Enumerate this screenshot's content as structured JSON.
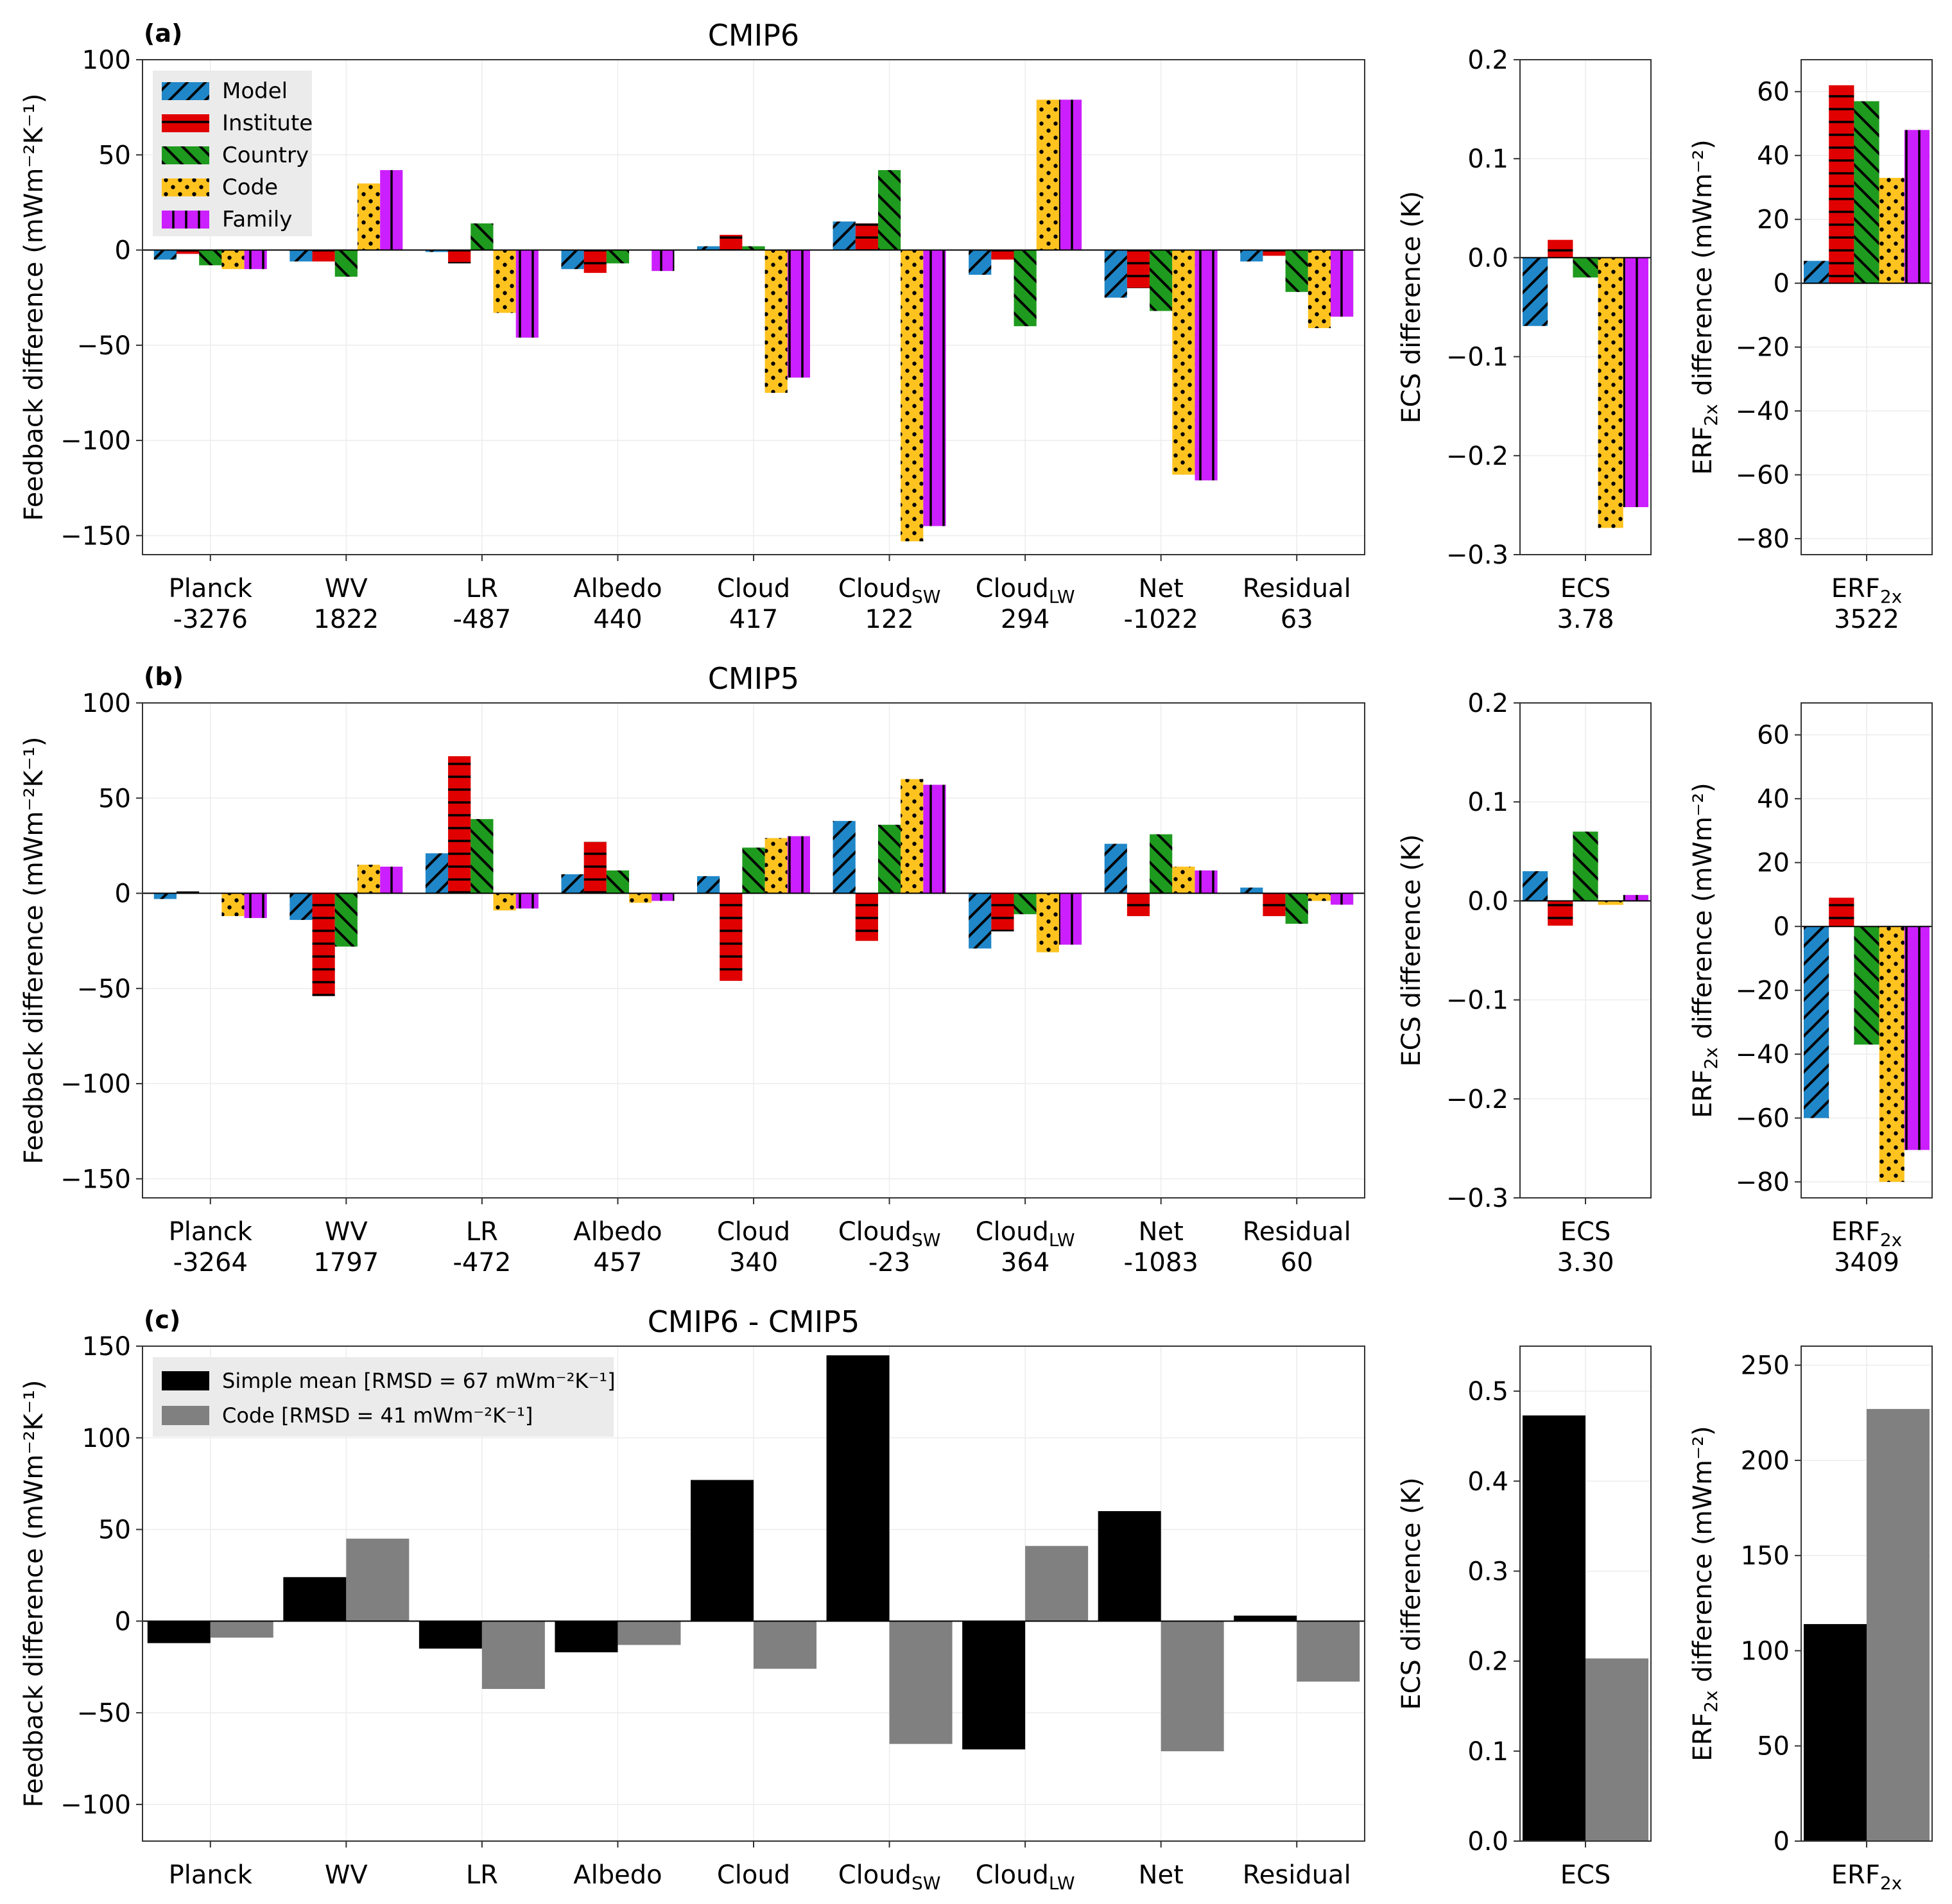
{
  "legend_items": [
    {
      "key": "model",
      "label": "Model",
      "color": "#1f86c8",
      "pattern": "diagonal-lines"
    },
    {
      "key": "institute",
      "label": "Institute",
      "color": "#e00000",
      "pattern": "horizontal-lines"
    },
    {
      "key": "country",
      "label": "Country",
      "color": "#1e9a1e",
      "pattern": "back-diagonal-lines"
    },
    {
      "key": "code",
      "label": "Code",
      "color": "#ffc320",
      "pattern": "dots"
    },
    {
      "key": "family",
      "label": "Family",
      "color": "#cc1fff",
      "pattern": "vertical-lines"
    }
  ],
  "legend_c_items": [
    {
      "key": "simple",
      "label": "Simple mean [RMSD = 67 mWm⁻²K⁻¹]",
      "color": "#000000"
    },
    {
      "key": "codec",
      "label": "Code [RMSD = 41 mWm⁻²K⁻¹]",
      "color": "#808080"
    }
  ],
  "chart_data": [
    {
      "panel": "a",
      "title": "CMIP6",
      "panel_label": "(a)",
      "type": "bar",
      "ylabel": "Feedback difference (mWm⁻²K⁻¹)",
      "ylim": [
        -160,
        100
      ],
      "yticks": [
        100,
        50,
        0,
        -50,
        -100,
        -150
      ],
      "categories": [
        {
          "name": "Planck",
          "sub": "",
          "value_label": "-3276"
        },
        {
          "name": "WV",
          "sub": "",
          "value_label": "1822"
        },
        {
          "name": "LR",
          "sub": "",
          "value_label": "-487"
        },
        {
          "name": "Albedo",
          "sub": "",
          "value_label": "440"
        },
        {
          "name": "Cloud",
          "sub": "",
          "value_label": "417"
        },
        {
          "name": "Cloud",
          "sub": "SW",
          "value_label": "122"
        },
        {
          "name": "Cloud",
          "sub": "LW",
          "value_label": "294"
        },
        {
          "name": "Net",
          "sub": "",
          "value_label": "-1022"
        },
        {
          "name": "Residual",
          "sub": "",
          "value_label": "63"
        }
      ],
      "series": [
        {
          "key": "model",
          "values": [
            -5,
            -6,
            -1,
            -10,
            2,
            15,
            -13,
            -25,
            -6
          ]
        },
        {
          "key": "institute",
          "values": [
            -2,
            -6,
            -7,
            -12,
            8,
            14,
            -5,
            -20,
            -3
          ]
        },
        {
          "key": "country",
          "values": [
            -8,
            -14,
            14,
            -7,
            2,
            42,
            -40,
            -32,
            -22
          ]
        },
        {
          "key": "code",
          "values": [
            -10,
            35,
            -33,
            0,
            -75,
            -153,
            79,
            -118,
            -41
          ]
        },
        {
          "key": "family",
          "values": [
            -10,
            42,
            -46,
            -11,
            -67,
            -145,
            79,
            -121,
            -35
          ]
        }
      ]
    },
    {
      "panel": "a-ecs",
      "type": "bar",
      "ylabel": "ECS difference (K)",
      "ylim": [
        -0.3,
        0.2
      ],
      "yticks": [
        "0.2",
        "0.1",
        "0.0",
        "−0.1",
        "−0.2",
        "−0.3"
      ],
      "ytick_values": [
        0.2,
        0.1,
        0.0,
        -0.1,
        -0.2,
        -0.3
      ],
      "category": {
        "name": "ECS",
        "sub": "",
        "value_label": "3.78"
      },
      "series": [
        {
          "key": "model",
          "value": -0.069
        },
        {
          "key": "institute",
          "value": 0.018
        },
        {
          "key": "country",
          "value": -0.02
        },
        {
          "key": "code",
          "value": -0.273
        },
        {
          "key": "family",
          "value": -0.252
        }
      ]
    },
    {
      "panel": "a-erf",
      "type": "bar",
      "ylabel_main": "ERF",
      "ylabel_sub": "2x",
      "ylabel_rest": " difference (mWm⁻²)",
      "ylim": [
        -85,
        70
      ],
      "yticks": [
        "60",
        "40",
        "20",
        "0",
        "−20",
        "−40",
        "−60",
        "−80"
      ],
      "ytick_values": [
        60,
        40,
        20,
        0,
        -20,
        -40,
        -60,
        -80
      ],
      "category": {
        "name": "ERF",
        "sub": "2x",
        "value_label": "3522"
      },
      "series": [
        {
          "key": "model",
          "value": 7
        },
        {
          "key": "institute",
          "value": 62
        },
        {
          "key": "country",
          "value": 57
        },
        {
          "key": "code",
          "value": 33
        },
        {
          "key": "family",
          "value": 48
        }
      ]
    },
    {
      "panel": "b",
      "title": "CMIP5",
      "panel_label": "(b)",
      "type": "bar",
      "ylabel": "Feedback difference (mWm⁻²K⁻¹)",
      "ylim": [
        -160,
        100
      ],
      "yticks": [
        100,
        50,
        0,
        -50,
        -100,
        -150
      ],
      "categories": [
        {
          "name": "Planck",
          "sub": "",
          "value_label": "-3264"
        },
        {
          "name": "WV",
          "sub": "",
          "value_label": "1797"
        },
        {
          "name": "LR",
          "sub": "",
          "value_label": "-472"
        },
        {
          "name": "Albedo",
          "sub": "",
          "value_label": "457"
        },
        {
          "name": "Cloud",
          "sub": "",
          "value_label": "340"
        },
        {
          "name": "Cloud",
          "sub": "SW",
          "value_label": "-23"
        },
        {
          "name": "Cloud",
          "sub": "LW",
          "value_label": "364"
        },
        {
          "name": "Net",
          "sub": "",
          "value_label": "-1083"
        },
        {
          "name": "Residual",
          "sub": "",
          "value_label": "60"
        }
      ],
      "series": [
        {
          "key": "model",
          "values": [
            -3,
            -14,
            21,
            10,
            9,
            38,
            -29,
            26,
            3
          ]
        },
        {
          "key": "institute",
          "values": [
            1,
            -54,
            72,
            27,
            -46,
            -25,
            -20,
            -12,
            -12
          ]
        },
        {
          "key": "country",
          "values": [
            0,
            -28,
            39,
            12,
            24,
            36,
            -11,
            31,
            -16
          ]
        },
        {
          "key": "code",
          "values": [
            -12,
            15,
            -9,
            -5,
            29,
            60,
            -31,
            14,
            -4
          ]
        },
        {
          "key": "family",
          "values": [
            -13,
            14,
            -8,
            -4,
            30,
            57,
            -27,
            12,
            -6
          ]
        }
      ]
    },
    {
      "panel": "b-ecs",
      "type": "bar",
      "ylabel": "ECS difference (K)",
      "ylim": [
        -0.3,
        0.2
      ],
      "yticks": [
        "0.2",
        "0.1",
        "0.0",
        "−0.1",
        "−0.2",
        "−0.3"
      ],
      "ytick_values": [
        0.2,
        0.1,
        0.0,
        -0.1,
        -0.2,
        -0.3
      ],
      "category": {
        "name": "ECS",
        "sub": "",
        "value_label": "3.30"
      },
      "series": [
        {
          "key": "model",
          "value": 0.03
        },
        {
          "key": "institute",
          "value": -0.025
        },
        {
          "key": "country",
          "value": 0.07
        },
        {
          "key": "code",
          "value": -0.004
        },
        {
          "key": "family",
          "value": 0.006
        }
      ]
    },
    {
      "panel": "b-erf",
      "type": "bar",
      "ylabel_main": "ERF",
      "ylabel_sub": "2x",
      "ylabel_rest": " difference (mWm⁻²)",
      "ylim": [
        -85,
        70
      ],
      "yticks": [
        "60",
        "40",
        "20",
        "0",
        "−20",
        "−40",
        "−60",
        "−80"
      ],
      "ytick_values": [
        60,
        40,
        20,
        0,
        -20,
        -40,
        -60,
        -80
      ],
      "category": {
        "name": "ERF",
        "sub": "2x",
        "value_label": "3409"
      },
      "series": [
        {
          "key": "model",
          "value": -60
        },
        {
          "key": "institute",
          "value": 9
        },
        {
          "key": "country",
          "value": -37
        },
        {
          "key": "code",
          "value": -80
        },
        {
          "key": "family",
          "value": -70
        }
      ]
    },
    {
      "panel": "c",
      "title": "CMIP6 - CMIP5",
      "panel_label": "(c)",
      "type": "bar",
      "ylabel": "Feedback difference (mWm⁻²K⁻¹)",
      "ylim": [
        -120,
        150
      ],
      "yticks": [
        150,
        100,
        50,
        0,
        -50,
        -100
      ],
      "categories": [
        {
          "name": "Planck",
          "sub": "",
          "value_label": ""
        },
        {
          "name": "WV",
          "sub": "",
          "value_label": ""
        },
        {
          "name": "LR",
          "sub": "",
          "value_label": ""
        },
        {
          "name": "Albedo",
          "sub": "",
          "value_label": ""
        },
        {
          "name": "Cloud",
          "sub": "",
          "value_label": ""
        },
        {
          "name": "Cloud",
          "sub": "SW",
          "value_label": ""
        },
        {
          "name": "Cloud",
          "sub": "LW",
          "value_label": ""
        },
        {
          "name": "Net",
          "sub": "",
          "value_label": ""
        },
        {
          "name": "Residual",
          "sub": "",
          "value_label": ""
        }
      ],
      "series": [
        {
          "key": "simple",
          "values": [
            -12,
            24,
            -15,
            -17,
            77,
            145,
            -70,
            60,
            3
          ]
        },
        {
          "key": "codec",
          "values": [
            -9,
            45,
            -37,
            -13,
            -26,
            -67,
            41,
            -71,
            -33
          ]
        }
      ]
    },
    {
      "panel": "c-ecs",
      "type": "bar",
      "ylabel": "ECS difference (K)",
      "ylim": [
        0,
        0.55
      ],
      "yticks": [
        "0.5",
        "0.4",
        "0.3",
        "0.2",
        "0.1",
        "0.0"
      ],
      "ytick_values": [
        0.5,
        0.4,
        0.3,
        0.2,
        0.1,
        0.0
      ],
      "category": {
        "name": "ECS",
        "sub": "",
        "value_label": ""
      },
      "series": [
        {
          "key": "simple",
          "value": 0.473
        },
        {
          "key": "codec",
          "value": 0.203
        }
      ]
    },
    {
      "panel": "c-erf",
      "type": "bar",
      "ylabel_main": "ERF",
      "ylabel_sub": "2x",
      "ylabel_rest": " difference (mWm⁻²)",
      "ylim": [
        0,
        260
      ],
      "yticks": [
        "250",
        "200",
        "150",
        "100",
        "50",
        "0"
      ],
      "ytick_values": [
        250,
        200,
        150,
        100,
        50,
        0
      ],
      "category": {
        "name": "ERF",
        "sub": "2x",
        "value_label": ""
      },
      "series": [
        {
          "key": "simple",
          "value": 114
        },
        {
          "key": "codec",
          "value": 227
        }
      ]
    }
  ]
}
